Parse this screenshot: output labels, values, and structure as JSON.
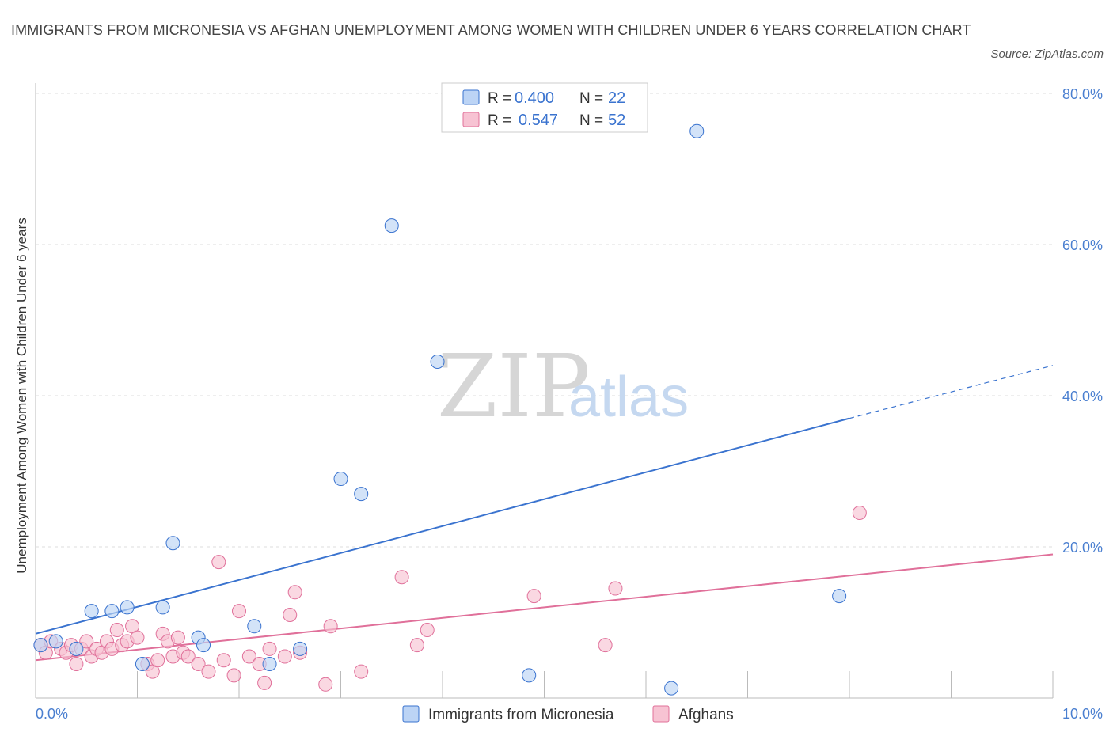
{
  "title": "IMMIGRANTS FROM MICRONESIA VS AFGHAN UNEMPLOYMENT AMONG WOMEN WITH CHILDREN UNDER 6 YEARS CORRELATION CHART",
  "source": "Source: ZipAtlas.com",
  "watermark": {
    "zip": "ZIP",
    "atlas": "atlas"
  },
  "colors": {
    "blue": "#3a73cf",
    "blue_fill": "#bcd4f5",
    "pink": "#e0709a",
    "pink_fill": "#f7c3d3",
    "axis_text": "#4a7fd0",
    "grid": "#dddddd"
  },
  "legend": {
    "rows": [
      {
        "r_label": "R =",
        "r_value": "0.400",
        "n_label": "N =",
        "n_value": "22"
      },
      {
        "r_label": "R =",
        "r_value": "0.547",
        "n_label": "N =",
        "n_value": "52"
      }
    ]
  },
  "chart_data": {
    "type": "scatter",
    "title": "IMMIGRANTS FROM MICRONESIA VS AFGHAN UNEMPLOYMENT AMONG WOMEN WITH CHILDREN UNDER 6 YEARS CORRELATION CHART",
    "xlabel": "",
    "ylabel": "Unemployment Among Women with Children Under 6 years",
    "xlim": [
      0,
      10
    ],
    "ylim": [
      0,
      80
    ],
    "x_tick_labels": [
      "0.0%",
      "10.0%"
    ],
    "y_ticks": [
      20,
      40,
      60,
      80
    ],
    "y_tick_labels": [
      "20.0%",
      "40.0%",
      "60.0%",
      "80.0%"
    ],
    "grid": true,
    "series": [
      {
        "name": "Immigrants from Micronesia",
        "color": "#3a73cf",
        "R": 0.4,
        "N": 22,
        "trend": {
          "x0": 0,
          "y0": 8.5,
          "x1": 8.0,
          "y1": 37.0,
          "dashed_to_x": 10.0,
          "dashed_to_y": 44.0
        },
        "points": [
          [
            0.05,
            7.0
          ],
          [
            0.2,
            7.5
          ],
          [
            0.4,
            6.5
          ],
          [
            0.55,
            11.5
          ],
          [
            0.75,
            11.5
          ],
          [
            0.9,
            12.0
          ],
          [
            1.05,
            4.5
          ],
          [
            1.25,
            12.0
          ],
          [
            1.35,
            20.5
          ],
          [
            1.6,
            8.0
          ],
          [
            1.65,
            7.0
          ],
          [
            2.15,
            9.5
          ],
          [
            2.3,
            4.5
          ],
          [
            2.6,
            6.5
          ],
          [
            3.0,
            29.0
          ],
          [
            3.2,
            27.0
          ],
          [
            3.5,
            62.5
          ],
          [
            3.95,
            44.5
          ],
          [
            4.85,
            3.0
          ],
          [
            6.25,
            1.3
          ],
          [
            6.5,
            75.0
          ],
          [
            7.9,
            13.5
          ]
        ]
      },
      {
        "name": "Afghans",
        "color": "#e0709a",
        "R": 0.547,
        "N": 52,
        "trend": {
          "x0": 0,
          "y0": 5.0,
          "x1": 10.0,
          "y1": 19.0
        },
        "points": [
          [
            0.05,
            7.0
          ],
          [
            0.1,
            6.0
          ],
          [
            0.15,
            7.5
          ],
          [
            0.25,
            6.5
          ],
          [
            0.3,
            6.0
          ],
          [
            0.35,
            7.0
          ],
          [
            0.4,
            4.5
          ],
          [
            0.45,
            6.5
          ],
          [
            0.5,
            7.5
          ],
          [
            0.55,
            5.5
          ],
          [
            0.6,
            6.5
          ],
          [
            0.65,
            6.0
          ],
          [
            0.7,
            7.5
          ],
          [
            0.75,
            6.5
          ],
          [
            0.8,
            9.0
          ],
          [
            0.85,
            7.0
          ],
          [
            0.9,
            7.5
          ],
          [
            0.95,
            9.5
          ],
          [
            1.0,
            8.0
          ],
          [
            1.1,
            4.5
          ],
          [
            1.15,
            3.5
          ],
          [
            1.2,
            5.0
          ],
          [
            1.25,
            8.5
          ],
          [
            1.3,
            7.5
          ],
          [
            1.35,
            5.5
          ],
          [
            1.4,
            8.0
          ],
          [
            1.45,
            6.0
          ],
          [
            1.5,
            5.5
          ],
          [
            1.6,
            4.5
          ],
          [
            1.7,
            3.5
          ],
          [
            1.8,
            18.0
          ],
          [
            1.85,
            5.0
          ],
          [
            1.95,
            3.0
          ],
          [
            2.0,
            11.5
          ],
          [
            2.1,
            5.5
          ],
          [
            2.2,
            4.5
          ],
          [
            2.25,
            2.0
          ],
          [
            2.3,
            6.5
          ],
          [
            2.45,
            5.5
          ],
          [
            2.5,
            11.0
          ],
          [
            2.55,
            14.0
          ],
          [
            2.6,
            6.0
          ],
          [
            2.85,
            1.8
          ],
          [
            2.9,
            9.5
          ],
          [
            3.2,
            3.5
          ],
          [
            3.6,
            16.0
          ],
          [
            3.75,
            7.0
          ],
          [
            3.85,
            9.0
          ],
          [
            4.9,
            13.5
          ],
          [
            5.6,
            7.0
          ],
          [
            5.7,
            14.5
          ],
          [
            8.1,
            24.5
          ]
        ]
      }
    ]
  },
  "bottom_legend": [
    {
      "label": "Immigrants from Micronesia"
    },
    {
      "label": "Afghans"
    }
  ]
}
